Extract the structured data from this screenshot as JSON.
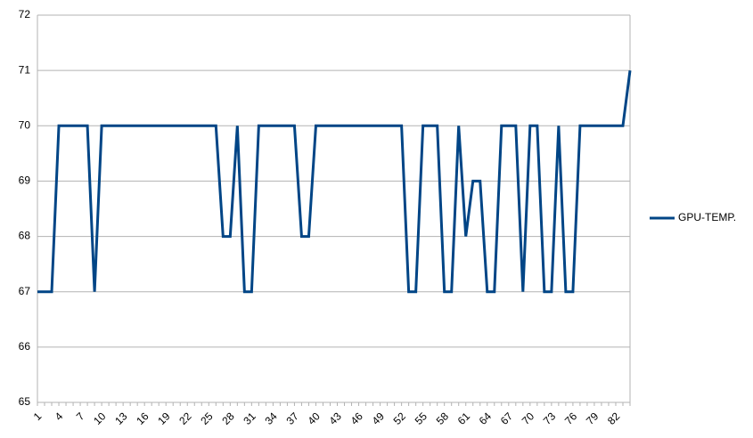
{
  "chart_data": {
    "type": "line",
    "categories": [
      "1",
      null,
      null,
      "4",
      null,
      null,
      "7",
      null,
      null,
      "10",
      null,
      null,
      "13",
      null,
      null,
      "16",
      null,
      null,
      "19",
      null,
      null,
      "22",
      null,
      null,
      "25",
      null,
      null,
      "28",
      null,
      null,
      "31",
      null,
      null,
      "34",
      null,
      null,
      "37",
      null,
      null,
      "40",
      null,
      null,
      "43",
      null,
      null,
      "46",
      null,
      null,
      "49",
      null,
      null,
      "52",
      null,
      null,
      "55",
      null,
      null,
      "58",
      null,
      null,
      "61",
      null,
      null,
      "64",
      null,
      null,
      "67",
      null,
      null,
      "70",
      null,
      null,
      "73",
      null,
      null,
      "76",
      null,
      null,
      "79",
      null,
      null,
      "82",
      null,
      null
    ],
    "series": [
      {
        "name": "GPU-TEMP.",
        "color": "#004586",
        "values": [
          67,
          67,
          67,
          70,
          70,
          70,
          70,
          70,
          67,
          70,
          70,
          70,
          70,
          70,
          70,
          70,
          70,
          70,
          70,
          70,
          70,
          70,
          70,
          70,
          70,
          70,
          68,
          68,
          70,
          67,
          67,
          70,
          70,
          70,
          70,
          70,
          70,
          68,
          68,
          70,
          70,
          70,
          70,
          70,
          70,
          70,
          70,
          70,
          70,
          70,
          70,
          70,
          67,
          67,
          70,
          70,
          70,
          67,
          67,
          70,
          68,
          69,
          69,
          67,
          67,
          70,
          70,
          70,
          67,
          70,
          70,
          67,
          67,
          70,
          67,
          67,
          70,
          70,
          70,
          70,
          70,
          70,
          70,
          71
        ]
      }
    ],
    "ylim": [
      65,
      72
    ],
    "yticks": [
      65,
      66,
      67,
      68,
      69,
      70,
      71,
      72
    ],
    "grid": true,
    "legend": "right"
  }
}
